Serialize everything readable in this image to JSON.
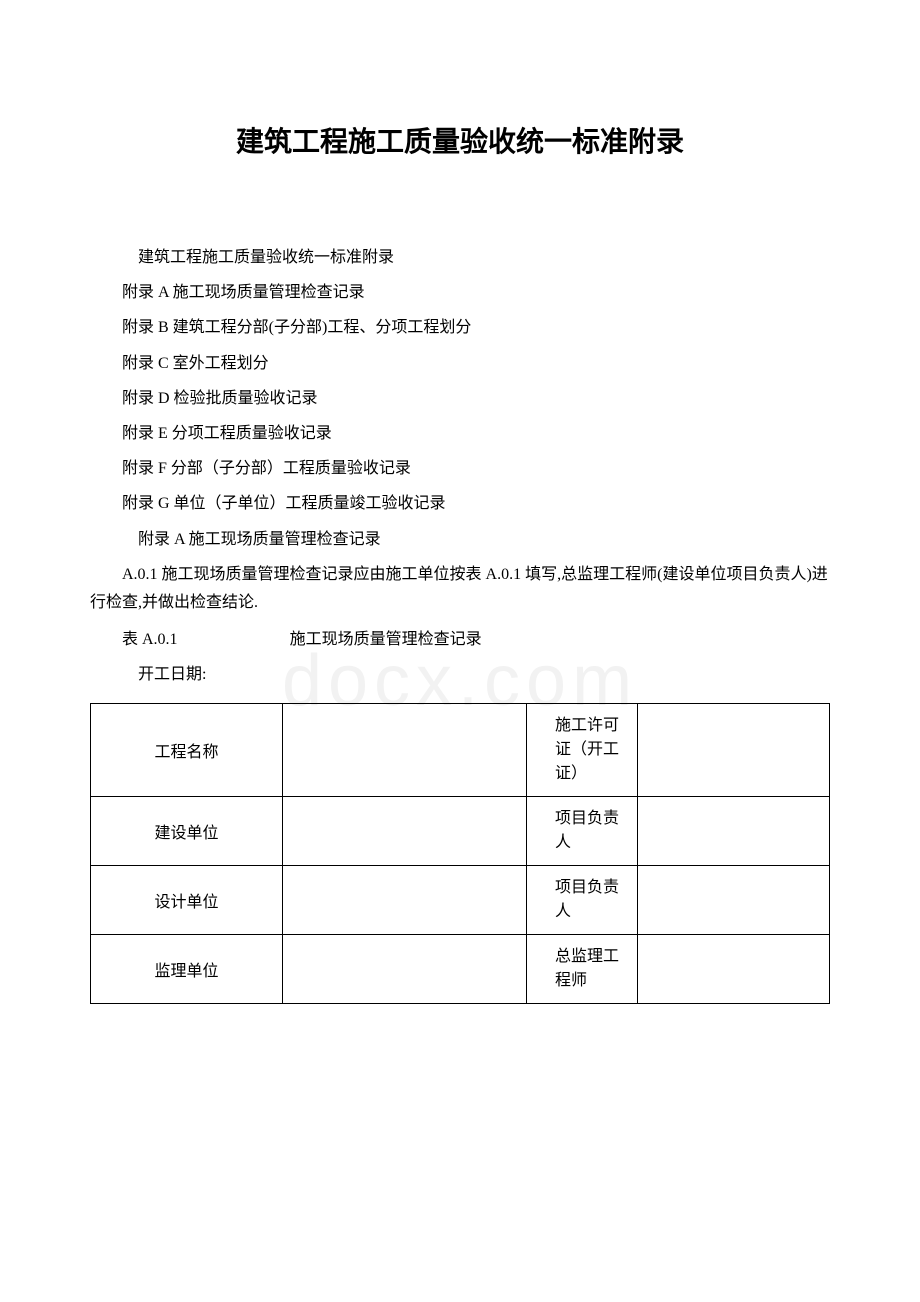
{
  "title": "建筑工程施工质量验收统一标准附录",
  "intro": "建筑工程施工质量验收统一标准附录",
  "list": [
    "附录 A 施工现场质量管理检查记录",
    "附录 B 建筑工程分部(子分部)工程、分项工程划分",
    "附录 C 室外工程划分",
    "附录 D 检验批质量验收记录",
    "附录 E 分项工程质量验收记录",
    "附录 F 分部（子分部）工程质量验收记录",
    "附录 G 单位（子单位）工程质量竣工验收记录"
  ],
  "appendixATitle": "附录 A 施工现场质量管理检查记录",
  "clauseA01": "A.0.1 施工现场质量管理检查记录应由施工单位按表 A.0.1 填写,总监理工程师(建设单位项目负责人)进行检查,并做出检查结论.",
  "tableLabel": "表 A.0.1",
  "tableTitle": "施工现场质量管理检查记录",
  "dateLabel": "开工日期:",
  "table": {
    "rows": [
      {
        "label": "工程名称",
        "rightLabel": "施工许可证（开工证）"
      },
      {
        "label": "建设单位",
        "rightLabel": "项目负责人"
      },
      {
        "label": "设计单位",
        "rightLabel": "项目负责人"
      },
      {
        "label": "监理单位",
        "rightLabel": "总监理工程师"
      }
    ]
  },
  "watermark": "docx.com",
  "styles": {
    "bodyBg": "#ffffff",
    "textColor": "#000000",
    "watermarkColor": "#f2f2f2",
    "borderColor": "#000000",
    "titleFontSize": 28,
    "bodyFontSize": 16
  }
}
